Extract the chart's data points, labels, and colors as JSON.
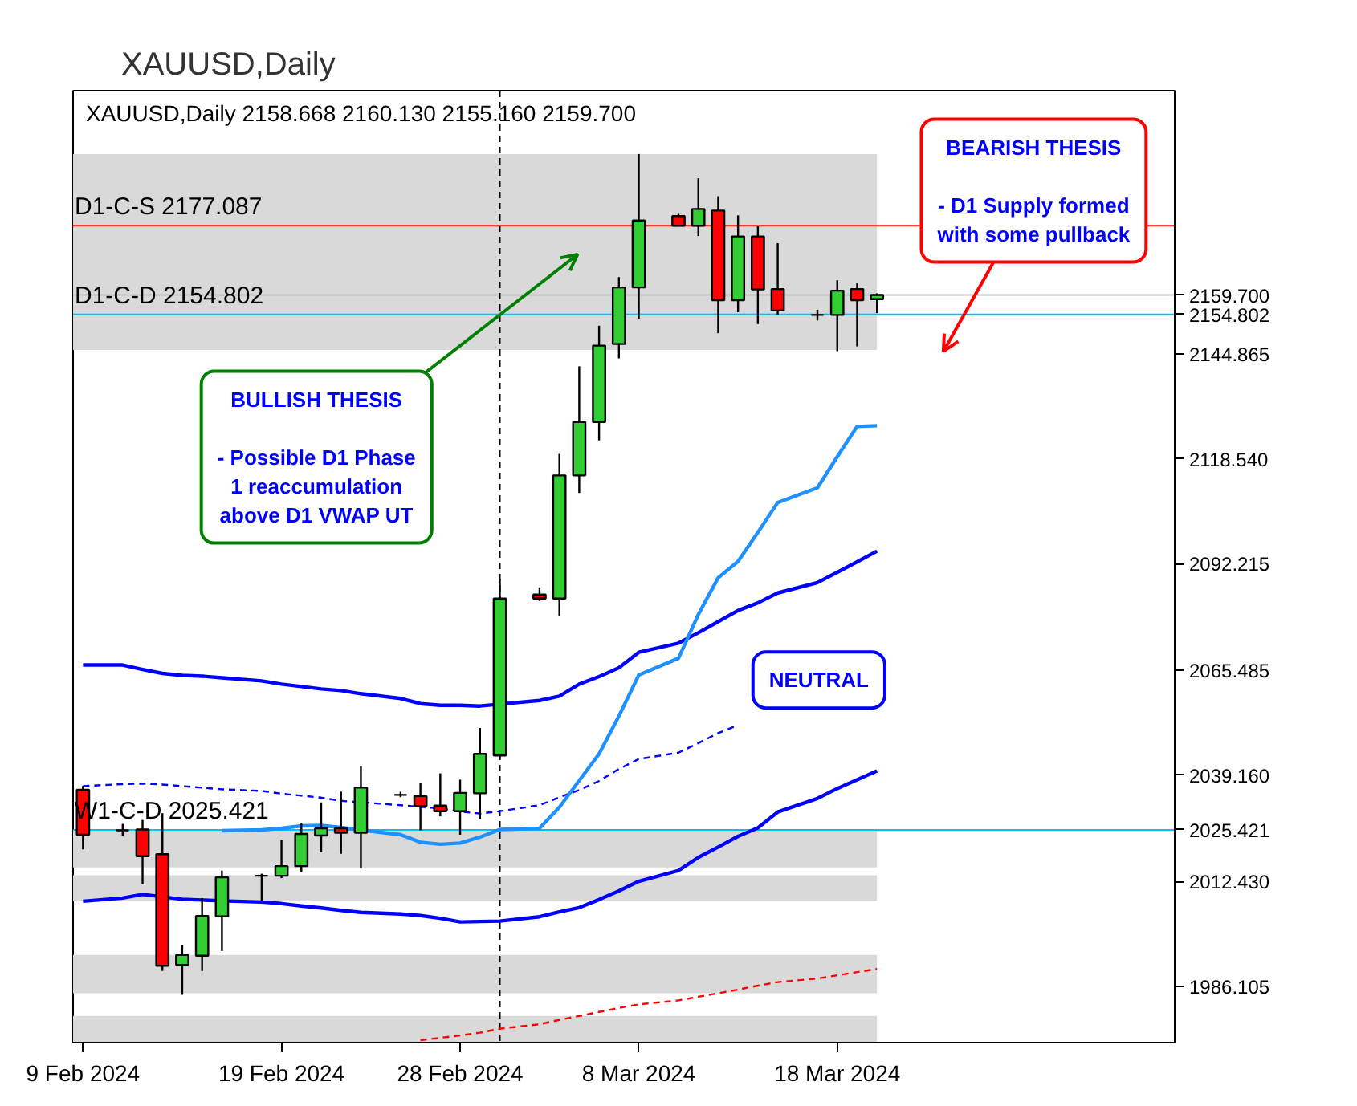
{
  "chart_data": {
    "type": "candlestick",
    "title": "XAUUSD,Daily",
    "subtitle": "XAUUSD,Daily 2158.668 2160.130 2155.160 2159.700",
    "x": [
      "2024-02-09",
      "2024-02-11",
      "2024-02-12",
      "2024-02-13",
      "2024-02-14",
      "2024-02-15",
      "2024-02-16",
      "2024-02-18",
      "2024-02-19",
      "2024-02-20",
      "2024-02-21",
      "2024-02-22",
      "2024-02-23",
      "2024-02-25",
      "2024-02-26",
      "2024-02-27",
      "2024-02-28",
      "2024-02-29",
      "2024-03-01",
      "2024-03-03",
      "2024-03-04",
      "2024-03-05",
      "2024-03-06",
      "2024-03-07",
      "2024-03-08",
      "2024-03-10",
      "2024-03-11",
      "2024-03-12",
      "2024-03-13",
      "2024-03-14",
      "2024-03-15",
      "2024-03-17",
      "2024-03-18",
      "2024-03-19",
      "2024-03-20"
    ],
    "ohlc": [
      [
        2035.5,
        2036.5,
        2020.5,
        2024.2
      ],
      [
        2025.3,
        2026.9,
        2023.9,
        2025.3
      ],
      [
        2025.5,
        2027.9,
        2011.7,
        2018.8
      ],
      [
        2019.3,
        2029.6,
        1990.0,
        1991.3
      ],
      [
        1991.5,
        1996.5,
        1984.0,
        1994.0
      ],
      [
        1993.8,
        2008.3,
        1990.0,
        2003.8
      ],
      [
        2003.7,
        2015.2,
        1995.0,
        2013.5
      ],
      [
        2013.9,
        2014.4,
        2007.5,
        2013.9
      ],
      [
        2013.9,
        2022.8,
        2013.3,
        2016.3
      ],
      [
        2016.3,
        2027.0,
        2014.9,
        2024.4
      ],
      [
        2024.0,
        2032.3,
        2019.8,
        2025.8
      ],
      [
        2025.8,
        2035.0,
        2019.4,
        2024.7
      ],
      [
        2024.7,
        2041.4,
        2015.7,
        2036.0
      ],
      [
        2034.2,
        2035.0,
        2033.6,
        2034.2
      ],
      [
        2033.9,
        2037.1,
        2025.3,
        2031.4
      ],
      [
        2031.5,
        2039.6,
        2028.8,
        2030.1
      ],
      [
        2030.1,
        2038.0,
        2024.2,
        2034.7
      ],
      [
        2034.6,
        2051.0,
        2028.2,
        2044.5
      ],
      [
        2044.1,
        2088.4,
        2043.2,
        2083.5
      ],
      [
        2084.5,
        2086.3,
        2082.9,
        2083.5
      ],
      [
        2083.5,
        2119.8,
        2079.1,
        2114.4
      ],
      [
        2114.4,
        2141.8,
        2110.0,
        2127.8
      ],
      [
        2127.8,
        2152.0,
        2123.2,
        2147.0
      ],
      [
        2147.4,
        2164.2,
        2143.8,
        2161.6
      ],
      [
        2161.6,
        2195.1,
        2153.7,
        2178.4
      ],
      [
        2179.5,
        2180.1,
        2177.0,
        2177.1
      ],
      [
        2177.1,
        2189.0,
        2174.5,
        2181.3
      ],
      [
        2180.9,
        2184.5,
        2150.1,
        2158.4
      ],
      [
        2158.4,
        2179.7,
        2155.4,
        2174.4
      ],
      [
        2174.4,
        2177.1,
        2152.4,
        2161.1
      ],
      [
        2161.2,
        2172.7,
        2154.8,
        2155.8
      ],
      [
        2154.7,
        2156.0,
        2153.3,
        2154.7
      ],
      [
        2154.7,
        2163.4,
        2145.6,
        2160.8
      ],
      [
        2161.2,
        2162.6,
        2146.8,
        2158.4
      ],
      [
        2158.668,
        2160.13,
        2155.16,
        2159.7
      ]
    ],
    "colors": [
      "#ff0000",
      "#000000",
      "#ff0000",
      "#ff0000",
      "#32cd32",
      "#32cd32",
      "#32cd32",
      "#000000",
      "#32cd32",
      "#32cd32",
      "#32cd32",
      "#ff0000",
      "#32cd32",
      "#000000",
      "#ff0000",
      "#ff0000",
      "#32cd32",
      "#32cd32",
      "#32cd32",
      "#ff0000",
      "#32cd32",
      "#32cd32",
      "#32cd32",
      "#32cd32",
      "#32cd32",
      "#ff0000",
      "#32cd32",
      "#ff0000",
      "#32cd32",
      "#ff0000",
      "#ff0000",
      "#000000",
      "#32cd32",
      "#ff0000",
      "#32cd32"
    ],
    "series": [
      {
        "type": "line",
        "color": "#0000ff",
        "values": [
          2066.8,
          2066.8,
          2065.7,
          2064.7,
          2064.2,
          2064.0,
          2063.6,
          2062.8,
          2062.0,
          2061.4,
          2060.8,
          2060.4,
          2059.6,
          2058.4,
          2057.1,
          2056.7,
          2056.7,
          2056.5,
          null,
          2057.9,
          2059.0,
          2062.0,
          2063.9,
          2066.1,
          2070.0,
          2072.3,
          2074.9,
          2077.7,
          2080.5,
          2082.4,
          2084.9,
          2087.5,
          2090.1,
          2092.7,
          2095.4
        ]
      },
      {
        "type": "line",
        "color": "#0000ff",
        "values": [
          2007.5,
          2008.3,
          2009.2,
          null,
          2008.0,
          2007.8,
          2007.6,
          2007.3,
          2006.9,
          2006.3,
          2005.8,
          2005.2,
          2004.7,
          2004.3,
          2003.9,
          2003.2,
          2002.3,
          2002.4,
          2002.5,
          2003.6,
          2004.8,
          2005.9,
          2007.9,
          2010.1,
          2012.5,
          2015.2,
          2018.5,
          2021.1,
          2023.8,
          2025.9,
          2029.9,
          2033.3,
          2035.8,
          2038.0,
          2040.2
        ]
      },
      {
        "type": "line",
        "color": "#0000ff",
        "line_style": "dashed",
        "values": [
          2036.4,
          2036.9,
          2037.0,
          2036.8,
          2036.4,
          2036.0,
          2035.6,
          2035.2,
          2034.5,
          2034.0,
          2033.5,
          2032.7,
          null,
          2031.6,
          2031.2,
          2030.8,
          2030.0,
          2029.5,
          2030.1,
          2031.6,
          2033.6,
          2035.4,
          2037.7,
          2040.7,
          2043.2,
          2044.8,
          2047.2,
          2049.7,
          2051.7,
          null,
          null,
          null,
          null,
          null,
          null
        ]
      },
      {
        "type": "line",
        "color": "#1e90ff",
        "values": [
          null,
          null,
          null,
          null,
          null,
          null,
          2025.2,
          2025.4,
          2025.8,
          2026.4,
          2026.5,
          2026.0,
          null,
          2024.2,
          2022.3,
          2021.8,
          2022.1,
          2023.6,
          2025.5,
          2025.8,
          2031.1,
          2037.8,
          2044.5,
          2054.0,
          2064.3,
          2068.5,
          2079.5,
          2088.7,
          2092.8,
          2100.1,
          2107.6,
          2111.3,
          2119.1,
          2126.7,
          2126.9
        ]
      },
      {
        "type": "line",
        "color": "#ff0000",
        "line_style": "dashed",
        "values": [
          null,
          null,
          null,
          null,
          null,
          null,
          null,
          null,
          null,
          null,
          null,
          null,
          null,
          null,
          1972.6,
          1973.2,
          1973.8,
          1974.5,
          1975.5,
          1976.6,
          1977.7,
          1978.7,
          1979.7,
          1980.7,
          1981.6,
          1982.6,
          1983.5,
          1984.4,
          1985.3,
          1986.3,
          1987.2,
          1988.1,
          1988.9,
          1989.7,
          1990.5
        ]
      }
    ],
    "xlim": [
      "2024-02-08T12:00",
      "2024-04-04"
    ],
    "xticks": [
      {
        "value": "2024-02-09",
        "label": "9 Feb 2024"
      },
      {
        "value": "2024-02-19",
        "label": "19 Feb 2024"
      },
      {
        "value": "2024-02-28",
        "label": "28 Feb 2024"
      },
      {
        "value": "2024-03-08",
        "label": "8 Mar 2024"
      },
      {
        "value": "2024-03-18",
        "label": "18 Mar 2024"
      }
    ],
    "ylim": [
      1972.0,
      2211.0
    ],
    "yticks": [
      {
        "value": 2159.7,
        "label": "2159.700"
      },
      {
        "value": 2154.802,
        "label": "2154.802"
      },
      {
        "value": 2144.865,
        "label": "2144.865"
      },
      {
        "value": 2118.54,
        "label": "2118.540"
      },
      {
        "value": 2092.215,
        "label": "2092.215"
      },
      {
        "value": 2065.485,
        "label": "2065.485"
      },
      {
        "value": 2039.16,
        "label": "2039.160"
      },
      {
        "value": 2025.421,
        "label": "2025.421"
      },
      {
        "value": 2012.43,
        "label": "2012.430"
      },
      {
        "value": 1986.105,
        "label": "1986.105"
      }
    ],
    "ref_lines": [
      {
        "axis": "y",
        "value": 2177.087,
        "label": "D1-C-S 2177.087",
        "color": "#ff0000"
      },
      {
        "axis": "y",
        "value": 2159.7,
        "color": "#c0c0c0"
      },
      {
        "axis": "y",
        "value": 2154.802,
        "label": "D1-C-D 2154.802",
        "color": "#00bfff"
      },
      {
        "axis": "y",
        "value": 2025.421,
        "label": "W1-C-D 2025.421",
        "color": "#00bfff"
      },
      {
        "axis": "x",
        "value": "2024-03-01",
        "color": "#000000",
        "line_style": "dashed"
      }
    ],
    "bands": [
      {
        "axis": "y",
        "from": 2155.0,
        "to": 2195.1,
        "color": "#d9d9d9"
      },
      {
        "axis": "y",
        "from": 2145.9,
        "to": 2154.8,
        "color": "#d9d9d9"
      },
      {
        "axis": "y",
        "from": 2016.0,
        "to": 2025.4,
        "color": "#d9d9d9"
      },
      {
        "axis": "y",
        "from": 2007.5,
        "to": 2014.0,
        "color": "#d9d9d9"
      },
      {
        "axis": "y",
        "from": 1984.4,
        "to": 1994.0,
        "color": "#d9d9d9"
      },
      {
        "axis": "y",
        "from": 1972.0,
        "to": 1978.7,
        "color": "#d9d9d9"
      }
    ],
    "annotations": [
      "BULLISH THESIS\n\n- Possible D1 Phase\n1 reaccumulation\nabove D1 VWAP UT",
      "BEARISH THESIS\n\n- D1 Supply formed\nwith some pullback",
      "NEUTRAL"
    ]
  }
}
